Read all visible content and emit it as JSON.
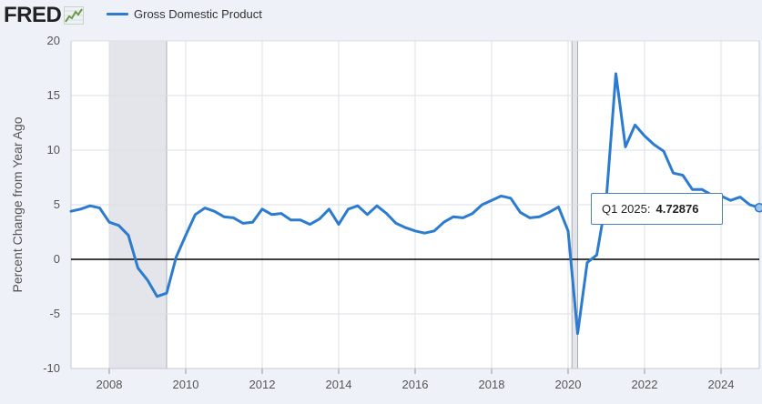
{
  "header": {
    "logo_text": "FRED",
    "logo_icon": "fred-line-chart-icon",
    "series_label": "Gross Domestic Product",
    "series_color": "#2c7bcf"
  },
  "tooltip": {
    "date": "Q1 2025",
    "separator": ":",
    "value": "4.72876"
  },
  "chart_data": {
    "type": "line",
    "title": "",
    "xlabel": "",
    "ylabel": "Percent Change from Year Ago",
    "xlim": [
      2007.0,
      2025.0
    ],
    "ylim": [
      -10,
      20
    ],
    "x_ticks": [
      "2008",
      "2010",
      "2012",
      "2014",
      "2016",
      "2018",
      "2020",
      "2022",
      "2024"
    ],
    "y_ticks": [
      "20",
      "15",
      "10",
      "5",
      "0",
      "-5",
      "-10"
    ],
    "grid": true,
    "legend_position": "top-left",
    "recessions": [
      {
        "start": 2008.0,
        "end": 2009.5
      },
      {
        "start": 2020.1,
        "end": 2020.25
      }
    ],
    "series": [
      {
        "name": "Gross Domestic Product",
        "color": "#2c7bcf",
        "x": [
          2007.0,
          2007.25,
          2007.5,
          2007.75,
          2008.0,
          2008.25,
          2008.5,
          2008.75,
          2009.0,
          2009.25,
          2009.5,
          2009.75,
          2010.0,
          2010.25,
          2010.5,
          2010.75,
          2011.0,
          2011.25,
          2011.5,
          2011.75,
          2012.0,
          2012.25,
          2012.5,
          2012.75,
          2013.0,
          2013.25,
          2013.5,
          2013.75,
          2014.0,
          2014.25,
          2014.5,
          2014.75,
          2015.0,
          2015.25,
          2015.5,
          2015.75,
          2016.0,
          2016.25,
          2016.5,
          2016.75,
          2017.0,
          2017.25,
          2017.5,
          2017.75,
          2018.0,
          2018.25,
          2018.5,
          2018.75,
          2019.0,
          2019.25,
          2019.5,
          2019.75,
          2020.0,
          2020.25,
          2020.5,
          2020.75,
          2021.0,
          2021.25,
          2021.5,
          2021.75,
          2022.0,
          2022.25,
          2022.5,
          2022.75,
          2023.0,
          2023.25,
          2023.5,
          2023.75,
          2024.0,
          2024.25,
          2024.5,
          2024.75,
          2025.0
        ],
        "values": [
          4.4,
          4.6,
          4.9,
          4.7,
          3.4,
          3.1,
          2.2,
          -0.8,
          -1.9,
          -3.4,
          -3.1,
          0.2,
          2.2,
          4.1,
          4.7,
          4.4,
          3.9,
          3.8,
          3.3,
          3.4,
          4.6,
          4.1,
          4.2,
          3.6,
          3.6,
          3.2,
          3.7,
          4.6,
          3.2,
          4.6,
          4.9,
          4.1,
          4.9,
          4.2,
          3.3,
          2.9,
          2.6,
          2.4,
          2.6,
          3.4,
          3.9,
          3.8,
          4.2,
          5.0,
          5.4,
          5.8,
          5.6,
          4.3,
          3.8,
          3.9,
          4.3,
          4.8,
          2.6,
          -6.8,
          -0.3,
          0.4,
          5.5,
          17.0,
          10.3,
          12.3,
          11.3,
          10.5,
          9.9,
          7.9,
          7.7,
          6.4,
          6.4,
          5.9,
          5.8,
          5.4,
          5.7,
          5.0,
          4.72876
        ]
      }
    ]
  }
}
